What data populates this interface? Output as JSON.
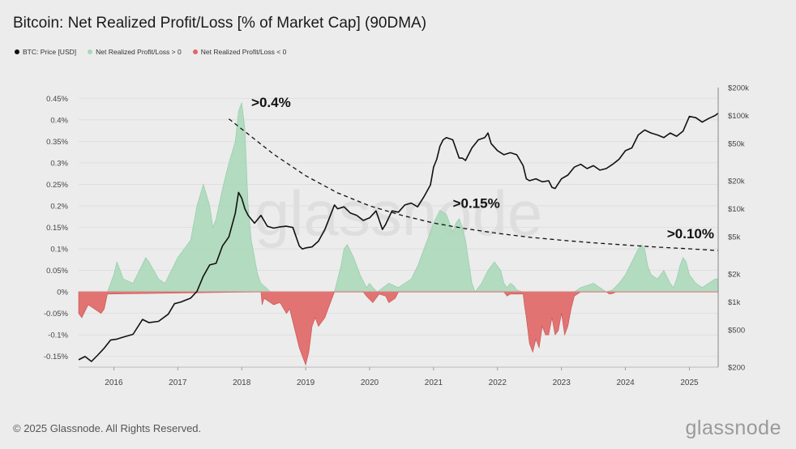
{
  "title": "Bitcoin: Net Realized Profit/Loss [% of Market Cap] (90DMA)",
  "legend": [
    {
      "label": "BTC: Price [USD]",
      "color": "#111111"
    },
    {
      "label": "Net Realized Profit/Loss > 0",
      "color": "#a8d8b9"
    },
    {
      "label": "Net Realized Profit/Loss < 0",
      "color": "#e06666"
    }
  ],
  "watermark": "glassnode",
  "footer": {
    "copyright": "© 2025 Glassnode. All Rights Reserved.",
    "brand": "glassnode"
  },
  "annotations": [
    {
      "text": ">0.4%",
      "x": 2018.15,
      "y": 0.43
    },
    {
      "text": ">0.15%",
      "x": 2021.3,
      "y": 0.195
    },
    {
      "text": ">0.10%",
      "x": 2024.65,
      "y": 0.125
    }
  ],
  "chart_data": {
    "type": "area",
    "x_ticks": [
      "2016",
      "2017",
      "2018",
      "2019",
      "2020",
      "2021",
      "2022",
      "2023",
      "2024",
      "2025"
    ],
    "xlim": [
      2015.45,
      2025.45
    ],
    "left_axis": {
      "ticks": [
        "0.45%",
        "0.4%",
        "0.35%",
        "0.3%",
        "0.25%",
        "0.2%",
        "0.15%",
        "0.1%",
        "0.05%",
        "0%",
        "-0.05%",
        "-0.1%",
        "-0.15%"
      ],
      "tick_values": [
        0.45,
        0.4,
        0.35,
        0.3,
        0.25,
        0.2,
        0.15,
        0.1,
        0.05,
        0,
        -0.05,
        -0.1,
        -0.15
      ],
      "ylim": [
        -0.175,
        0.475
      ]
    },
    "right_axis": {
      "ticks": [
        "$200k",
        "$100k",
        "$50k",
        "$20k",
        "$10k",
        "$5k",
        "$2k",
        "$1k",
        "$500",
        "$200"
      ],
      "tick_values": [
        200000,
        100000,
        50000,
        20000,
        10000,
        5000,
        2000,
        1000,
        500,
        200
      ],
      "scale": "log",
      "ylim": [
        200,
        200000
      ]
    },
    "series": [
      {
        "name": "Net Realized Profit/Loss > 0",
        "color": "#a8d8b9",
        "x": [
          2015.45,
          2015.9,
          2016.0,
          2016.05,
          2016.15,
          2016.3,
          2016.4,
          2016.5,
          2016.55,
          2016.7,
          2016.8,
          2016.9,
          2017.0,
          2017.1,
          2017.2,
          2017.3,
          2017.4,
          2017.5,
          2017.55,
          2017.6,
          2017.7,
          2017.8,
          2017.9,
          2017.95,
          2018.0,
          2018.05,
          2018.1,
          2018.15,
          2018.2,
          2018.25,
          2018.3,
          2018.38,
          2018.45,
          2019.45,
          2019.55,
          2019.6,
          2019.65,
          2019.75,
          2019.85,
          2019.95,
          2020.0,
          2020.05,
          2020.12,
          2020.3,
          2020.45,
          2020.55,
          2020.65,
          2020.75,
          2020.85,
          2020.95,
          2021.0,
          2021.1,
          2021.2,
          2021.3,
          2021.35,
          2021.4,
          2021.45,
          2021.5,
          2021.55,
          2021.6,
          2021.65,
          2021.75,
          2021.85,
          2021.95,
          2022.05,
          2022.1,
          2022.15,
          2022.2,
          2022.25,
          2022.3,
          2022.35,
          2022.4,
          2023.2,
          2023.3,
          2023.4,
          2023.5,
          2023.6,
          2023.7,
          2023.8,
          2023.9,
          2024.0,
          2024.1,
          2024.2,
          2024.25,
          2024.3,
          2024.35,
          2024.4,
          2024.5,
          2024.6,
          2024.7,
          2024.75,
          2024.8,
          2024.85,
          2024.9,
          2024.95,
          2025.0,
          2025.1,
          2025.2,
          2025.3,
          2025.4,
          2025.45
        ],
        "values": [
          0,
          0,
          0.04,
          0.07,
          0.03,
          0.02,
          0.05,
          0.08,
          0.07,
          0.03,
          0.02,
          0.05,
          0.08,
          0.1,
          0.12,
          0.2,
          0.25,
          0.2,
          0.15,
          0.17,
          0.24,
          0.3,
          0.35,
          0.42,
          0.44,
          0.38,
          0.2,
          0.12,
          0.08,
          0.04,
          0.02,
          0.01,
          0,
          0,
          0.06,
          0.1,
          0.11,
          0.08,
          0.04,
          0.01,
          0.02,
          0.01,
          0,
          0.02,
          0.01,
          0.02,
          0.03,
          0.06,
          0.1,
          0.14,
          0.16,
          0.19,
          0.18,
          0.14,
          0.16,
          0.17,
          0.15,
          0.12,
          0.07,
          0.02,
          0,
          0.02,
          0.05,
          0.07,
          0.05,
          0.02,
          0.01,
          0.02,
          0.015,
          0.005,
          0.002,
          0,
          0,
          0.01,
          0.015,
          0.02,
          0.01,
          0.0,
          0.005,
          0.02,
          0.04,
          0.07,
          0.1,
          0.11,
          0.1,
          0.06,
          0.04,
          0.03,
          0.05,
          0.02,
          0.01,
          0.03,
          0.06,
          0.08,
          0.07,
          0.04,
          0.02,
          0.01,
          0.02,
          0.03,
          0.03
        ]
      },
      {
        "name": "Net Realized Profit/Loss < 0",
        "color": "#e06666",
        "x": [
          2015.45,
          2015.5,
          2015.6,
          2015.7,
          2015.8,
          2015.85,
          2015.9,
          2018.3,
          2018.32,
          2018.35,
          2018.4,
          2018.5,
          2018.6,
          2018.7,
          2018.75,
          2018.8,
          2018.85,
          2018.9,
          2018.95,
          2019.0,
          2019.05,
          2019.1,
          2019.15,
          2019.2,
          2019.25,
          2019.3,
          2019.35,
          2019.4,
          2019.45,
          2019.9,
          2019.95,
          2020.05,
          2020.15,
          2020.25,
          2020.3,
          2020.35,
          2020.4,
          2020.45,
          2021.0,
          2022.1,
          2022.15,
          2022.2,
          2022.4,
          2022.42,
          2022.45,
          2022.5,
          2022.55,
          2022.6,
          2022.65,
          2022.7,
          2022.75,
          2022.8,
          2022.85,
          2022.9,
          2022.95,
          2023.0,
          2023.05,
          2023.1,
          2023.15,
          2023.2,
          2023.3,
          2023.7,
          2023.75,
          2023.8,
          2023.85
        ],
        "values": [
          -0.05,
          -0.06,
          -0.03,
          -0.04,
          -0.05,
          -0.04,
          -0.005,
          0,
          -0.03,
          -0.015,
          -0.02,
          -0.03,
          -0.025,
          -0.05,
          -0.04,
          -0.07,
          -0.1,
          -0.13,
          -0.15,
          -0.17,
          -0.14,
          -0.08,
          -0.06,
          -0.08,
          -0.07,
          -0.06,
          -0.04,
          -0.02,
          0,
          0,
          -0.01,
          -0.025,
          -0.005,
          -0.01,
          -0.025,
          -0.02,
          -0.015,
          0,
          0,
          0,
          -0.01,
          -0.005,
          -0.005,
          -0.03,
          -0.06,
          -0.12,
          -0.14,
          -0.11,
          -0.13,
          -0.08,
          -0.1,
          -0.1,
          -0.06,
          -0.1,
          -0.09,
          -0.05,
          -0.1,
          -0.08,
          -0.04,
          -0.01,
          0,
          0,
          -0.005,
          -0.004,
          0
        ]
      },
      {
        "name": "BTC: Price [USD]",
        "color": "#111111",
        "x": [
          2015.45,
          2015.55,
          2015.65,
          2015.75,
          2015.85,
          2015.95,
          2016.05,
          2016.15,
          2016.3,
          2016.45,
          2016.55,
          2016.7,
          2016.85,
          2016.95,
          2017.05,
          2017.2,
          2017.3,
          2017.4,
          2017.5,
          2017.6,
          2017.7,
          2017.8,
          2017.9,
          2017.95,
          2018.0,
          2018.05,
          2018.1,
          2018.2,
          2018.3,
          2018.4,
          2018.5,
          2018.6,
          2018.7,
          2018.8,
          2018.9,
          2018.95,
          2019.0,
          2019.1,
          2019.2,
          2019.3,
          2019.4,
          2019.45,
          2019.5,
          2019.6,
          2019.7,
          2019.8,
          2019.9,
          2020.0,
          2020.1,
          2020.2,
          2020.25,
          2020.35,
          2020.45,
          2020.55,
          2020.65,
          2020.75,
          2020.85,
          2020.95,
          2021.0,
          2021.05,
          2021.1,
          2021.15,
          2021.2,
          2021.3,
          2021.4,
          2021.45,
          2021.5,
          2021.6,
          2021.7,
          2021.8,
          2021.85,
          2021.9,
          2022.0,
          2022.1,
          2022.2,
          2022.3,
          2022.4,
          2022.45,
          2022.5,
          2022.6,
          2022.7,
          2022.8,
          2022.85,
          2022.9,
          2023.0,
          2023.1,
          2023.2,
          2023.3,
          2023.4,
          2023.5,
          2023.6,
          2023.7,
          2023.8,
          2023.9,
          2024.0,
          2024.1,
          2024.2,
          2024.3,
          2024.4,
          2024.5,
          2024.6,
          2024.7,
          2024.8,
          2024.9,
          2025.0,
          2025.1,
          2025.2,
          2025.3,
          2025.4,
          2025.45
        ],
        "values": [
          240,
          260,
          230,
          270,
          320,
          390,
          400,
          420,
          450,
          650,
          600,
          620,
          740,
          960,
          1000,
          1100,
          1300,
          1900,
          2500,
          2600,
          4000,
          5000,
          9000,
          15000,
          13000,
          10000,
          8500,
          7000,
          8500,
          6500,
          6200,
          6400,
          6500,
          6300,
          4000,
          3700,
          3800,
          3900,
          4500,
          6000,
          9000,
          11000,
          10000,
          10500,
          9000,
          8500,
          7500,
          8000,
          9500,
          6000,
          6800,
          9500,
          9200,
          11000,
          11500,
          10500,
          13500,
          18000,
          28000,
          34000,
          47000,
          55000,
          58000,
          55000,
          35000,
          35000,
          33000,
          45000,
          55000,
          58000,
          65000,
          50000,
          42000,
          38000,
          40000,
          38000,
          29000,
          21000,
          20000,
          21000,
          19500,
          20000,
          17000,
          16500,
          21000,
          23000,
          28000,
          30000,
          27000,
          29000,
          26000,
          27000,
          30000,
          34000,
          42000,
          45000,
          62000,
          70000,
          65000,
          62000,
          58000,
          65000,
          60000,
          68000,
          98000,
          95000,
          85000,
          93000,
          100000,
          106000
        ]
      }
    ],
    "trendline": {
      "name": "",
      "style": "dashed",
      "x": [
        2017.8,
        2018.5,
        2019.0,
        2019.5,
        2020.0,
        2020.5,
        2021.0,
        2021.5,
        2022.0,
        2022.5,
        2023.0,
        2023.5,
        2024.0,
        2024.5,
        2025.0,
        2025.45
      ],
      "values": [
        0.402,
        0.32,
        0.27,
        0.23,
        0.2,
        0.178,
        0.16,
        0.147,
        0.136,
        0.127,
        0.12,
        0.114,
        0.109,
        0.104,
        0.1,
        0.096
      ]
    },
    "grid": true
  }
}
